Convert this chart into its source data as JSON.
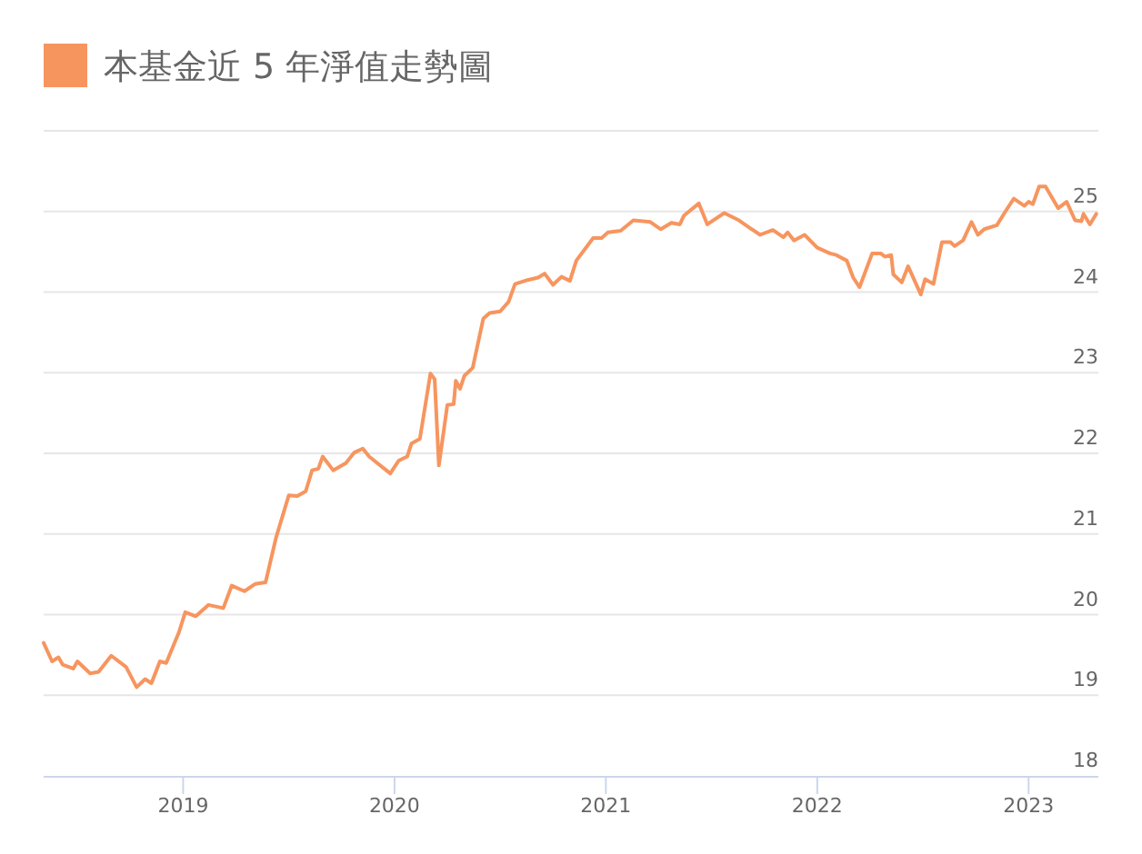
{
  "chart_data": {
    "type": "line",
    "series": [
      {
        "name": "本基金近 5 年淨值走勢圖",
        "color": "#f7955f",
        "x": [
          2018.34,
          2018.38,
          2018.41,
          2018.43,
          2018.48,
          2018.5,
          2018.56,
          2018.6,
          2018.66,
          2018.73,
          2018.78,
          2018.82,
          2018.85,
          2018.89,
          2018.92,
          2018.98,
          2019.01,
          2019.06,
          2019.12,
          2019.19,
          2019.23,
          2019.29,
          2019.34,
          2019.39,
          2019.44,
          2019.5,
          2019.54,
          2019.58,
          2019.61,
          2019.64,
          2019.66,
          2019.71,
          2019.77,
          2019.81,
          2019.85,
          2019.88,
          2019.98,
          2020.02,
          2020.06,
          2020.08,
          2020.12,
          2020.17,
          2020.19,
          2020.21,
          2020.25,
          2020.28,
          2020.29,
          2020.31,
          2020.33,
          2020.37,
          2020.42,
          2020.45,
          2020.5,
          2020.54,
          2020.57,
          2020.63,
          2020.68,
          2020.71,
          2020.75,
          2020.79,
          2020.83,
          2020.86,
          2020.94,
          2020.98,
          2021.01,
          2021.07,
          2021.13,
          2021.21,
          2021.26,
          2021.31,
          2021.35,
          2021.37,
          2021.44,
          2021.48,
          2021.56,
          2021.63,
          2021.69,
          2021.73,
          2021.79,
          2021.84,
          2021.86,
          2021.89,
          2021.94,
          2022.0,
          2022.06,
          2022.09,
          2022.14,
          2022.17,
          2022.2,
          2022.26,
          2022.3,
          2022.32,
          2022.35,
          2022.36,
          2022.4,
          2022.43,
          2022.49,
          2022.51,
          2022.55,
          2022.59,
          2022.63,
          2022.65,
          2022.69,
          2022.73,
          2022.76,
          2022.79,
          2022.85,
          2022.89,
          2022.93,
          2022.98,
          2023.0,
          2023.02,
          2023.05,
          2023.08,
          2023.14,
          2023.18,
          2023.22,
          2023.25,
          2023.26,
          2023.29,
          2023.32
        ],
        "values": [
          19.65,
          19.42,
          19.47,
          19.38,
          19.33,
          19.42,
          19.27,
          19.29,
          19.49,
          19.35,
          19.1,
          19.2,
          19.15,
          19.42,
          19.4,
          19.78,
          20.03,
          19.98,
          20.12,
          20.08,
          20.36,
          20.29,
          20.38,
          20.4,
          20.96,
          21.48,
          21.47,
          21.53,
          21.79,
          21.81,
          21.96,
          21.79,
          21.88,
          22.01,
          22.06,
          21.96,
          21.75,
          21.91,
          21.96,
          22.12,
          22.18,
          22.99,
          22.92,
          21.85,
          22.6,
          22.61,
          22.9,
          22.8,
          22.96,
          23.06,
          23.67,
          23.74,
          23.76,
          23.88,
          24.1,
          24.15,
          24.18,
          24.23,
          24.09,
          24.19,
          24.14,
          24.39,
          24.67,
          24.67,
          24.74,
          24.76,
          24.89,
          24.87,
          24.78,
          24.86,
          24.84,
          24.95,
          25.1,
          24.84,
          24.98,
          24.89,
          24.78,
          24.71,
          24.77,
          24.68,
          24.74,
          24.64,
          24.71,
          24.55,
          24.48,
          24.46,
          24.39,
          24.18,
          24.06,
          24.48,
          24.48,
          24.44,
          24.46,
          24.22,
          24.12,
          24.32,
          23.97,
          24.16,
          24.1,
          24.62,
          24.62,
          24.57,
          24.64,
          24.87,
          24.71,
          24.78,
          24.83,
          25.0,
          25.16,
          25.07,
          25.12,
          25.09,
          25.31,
          25.31,
          25.04,
          25.12,
          24.89,
          24.88,
          24.97,
          24.84,
          24.97
        ]
      }
    ],
    "xlim": [
      2018.34,
      2023.33
    ],
    "xticks": [
      2019,
      2020,
      2021,
      2022,
      2023
    ],
    "ylim": [
      18,
      26
    ],
    "yticks": [
      18,
      19,
      20,
      21,
      22,
      23,
      24,
      25,
      {
        "value": 26,
        "label": null
      }
    ],
    "grid": "y",
    "legend": "top left"
  }
}
